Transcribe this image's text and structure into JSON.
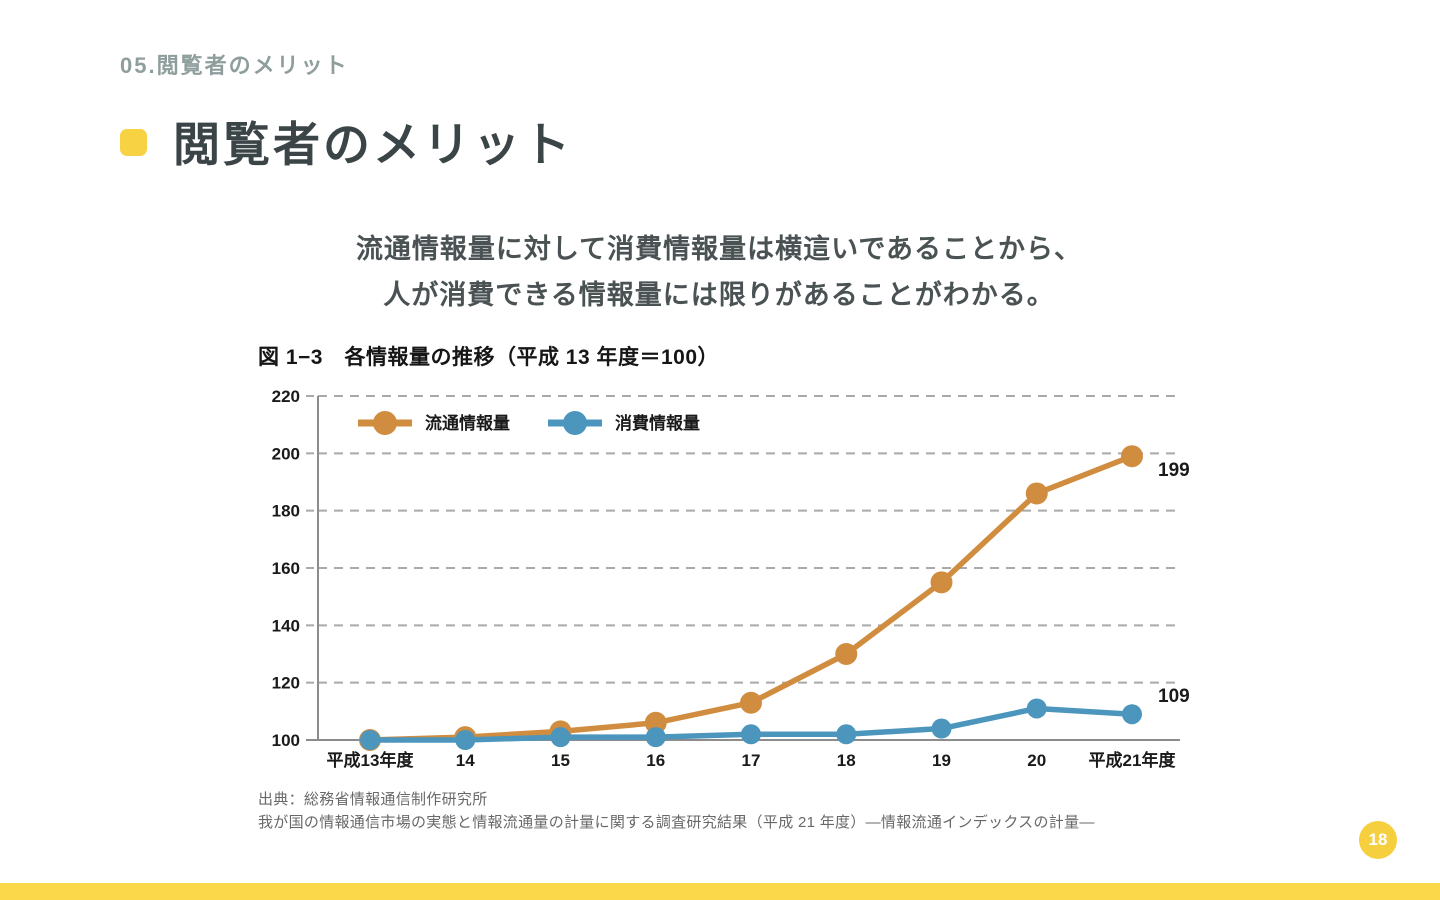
{
  "page": {
    "breadcrumb": "05.閲覧者のメリット",
    "title": "閲覧者のメリット",
    "page_number": "18"
  },
  "lead": {
    "line1": "流通情報量に対して消費情報量は横這いであることから、",
    "line2": "人が消費できる情報量には限りがあることがわかる。"
  },
  "source": {
    "line1": "出典：総務省情報通信制作研究所",
    "line2": "我が国の情報通信市場の実態と情報流通量の計量に関する調査研究結果（平成 21 年度）―情報流通インデックスの計量―"
  },
  "colors": {
    "accent_yellow": "#f7d243",
    "breadcrumb_gray": "#8e9e9c",
    "title_dark": "#3b4447",
    "grid_gray": "#a9a9a9",
    "axis_gray": "#8c8c8c",
    "chart_text": "#1a1a1a"
  },
  "chart_data": {
    "type": "line",
    "title": "図 1−3　各情報量の推移（平成 13 年度＝100）",
    "categories": [
      "平成13年度",
      "14",
      "15",
      "16",
      "17",
      "18",
      "19",
      "20",
      "平成21年度"
    ],
    "series": [
      {
        "name": "流通情報量",
        "color": "#d18d3f",
        "values": [
          100,
          101,
          103,
          106,
          113,
          130,
          155,
          186,
          199
        ],
        "end_label": "199",
        "end_label_side": "below"
      },
      {
        "name": "消費情報量",
        "color": "#4c95bd",
        "values": [
          100,
          100,
          101,
          101,
          102,
          102,
          104,
          111,
          109
        ],
        "end_label": "109",
        "end_label_side": "above"
      }
    ],
    "ylim": [
      100,
      220
    ],
    "yticks": [
      100,
      120,
      140,
      160,
      180,
      200,
      220
    ],
    "xlabel": "",
    "ylabel": "",
    "grid": "dashed-horizontal",
    "legend_position": "top-left-inside"
  }
}
